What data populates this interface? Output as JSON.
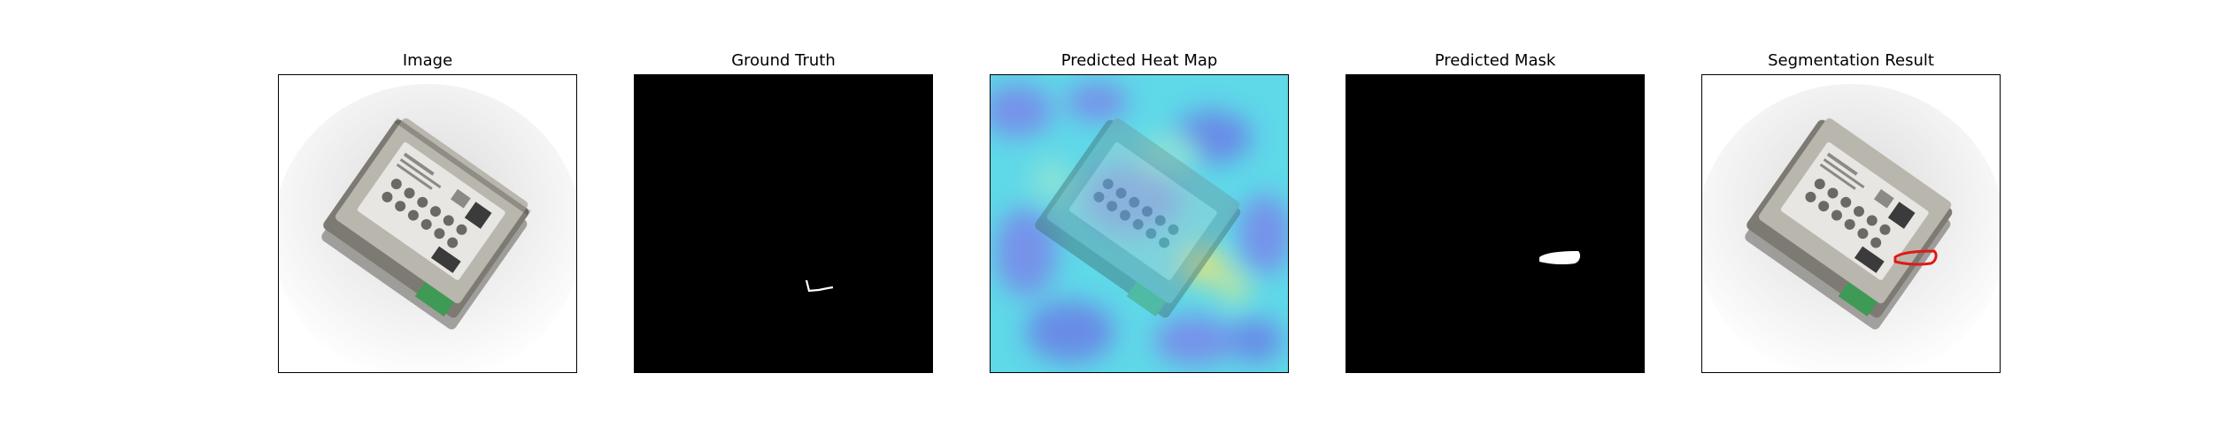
{
  "panels": [
    {
      "title": "Image"
    },
    {
      "title": "Ground Truth"
    },
    {
      "title": "Predicted Heat Map"
    },
    {
      "title": "Predicted Mask"
    },
    {
      "title": "Segmentation Result"
    }
  ],
  "colors": {
    "device_body": "#7d7a73",
    "device_top": "#b9b6ad",
    "label_panel": "#e7e6e2",
    "terminal_green": "#3f9a55",
    "heat_base": "#5fd8e8",
    "heat_cool": "#7a86ea",
    "heat_warm": "#e9e27a",
    "contour": "#e01818",
    "mask_bg": "#000000",
    "mask_fg": "#ffffff"
  }
}
